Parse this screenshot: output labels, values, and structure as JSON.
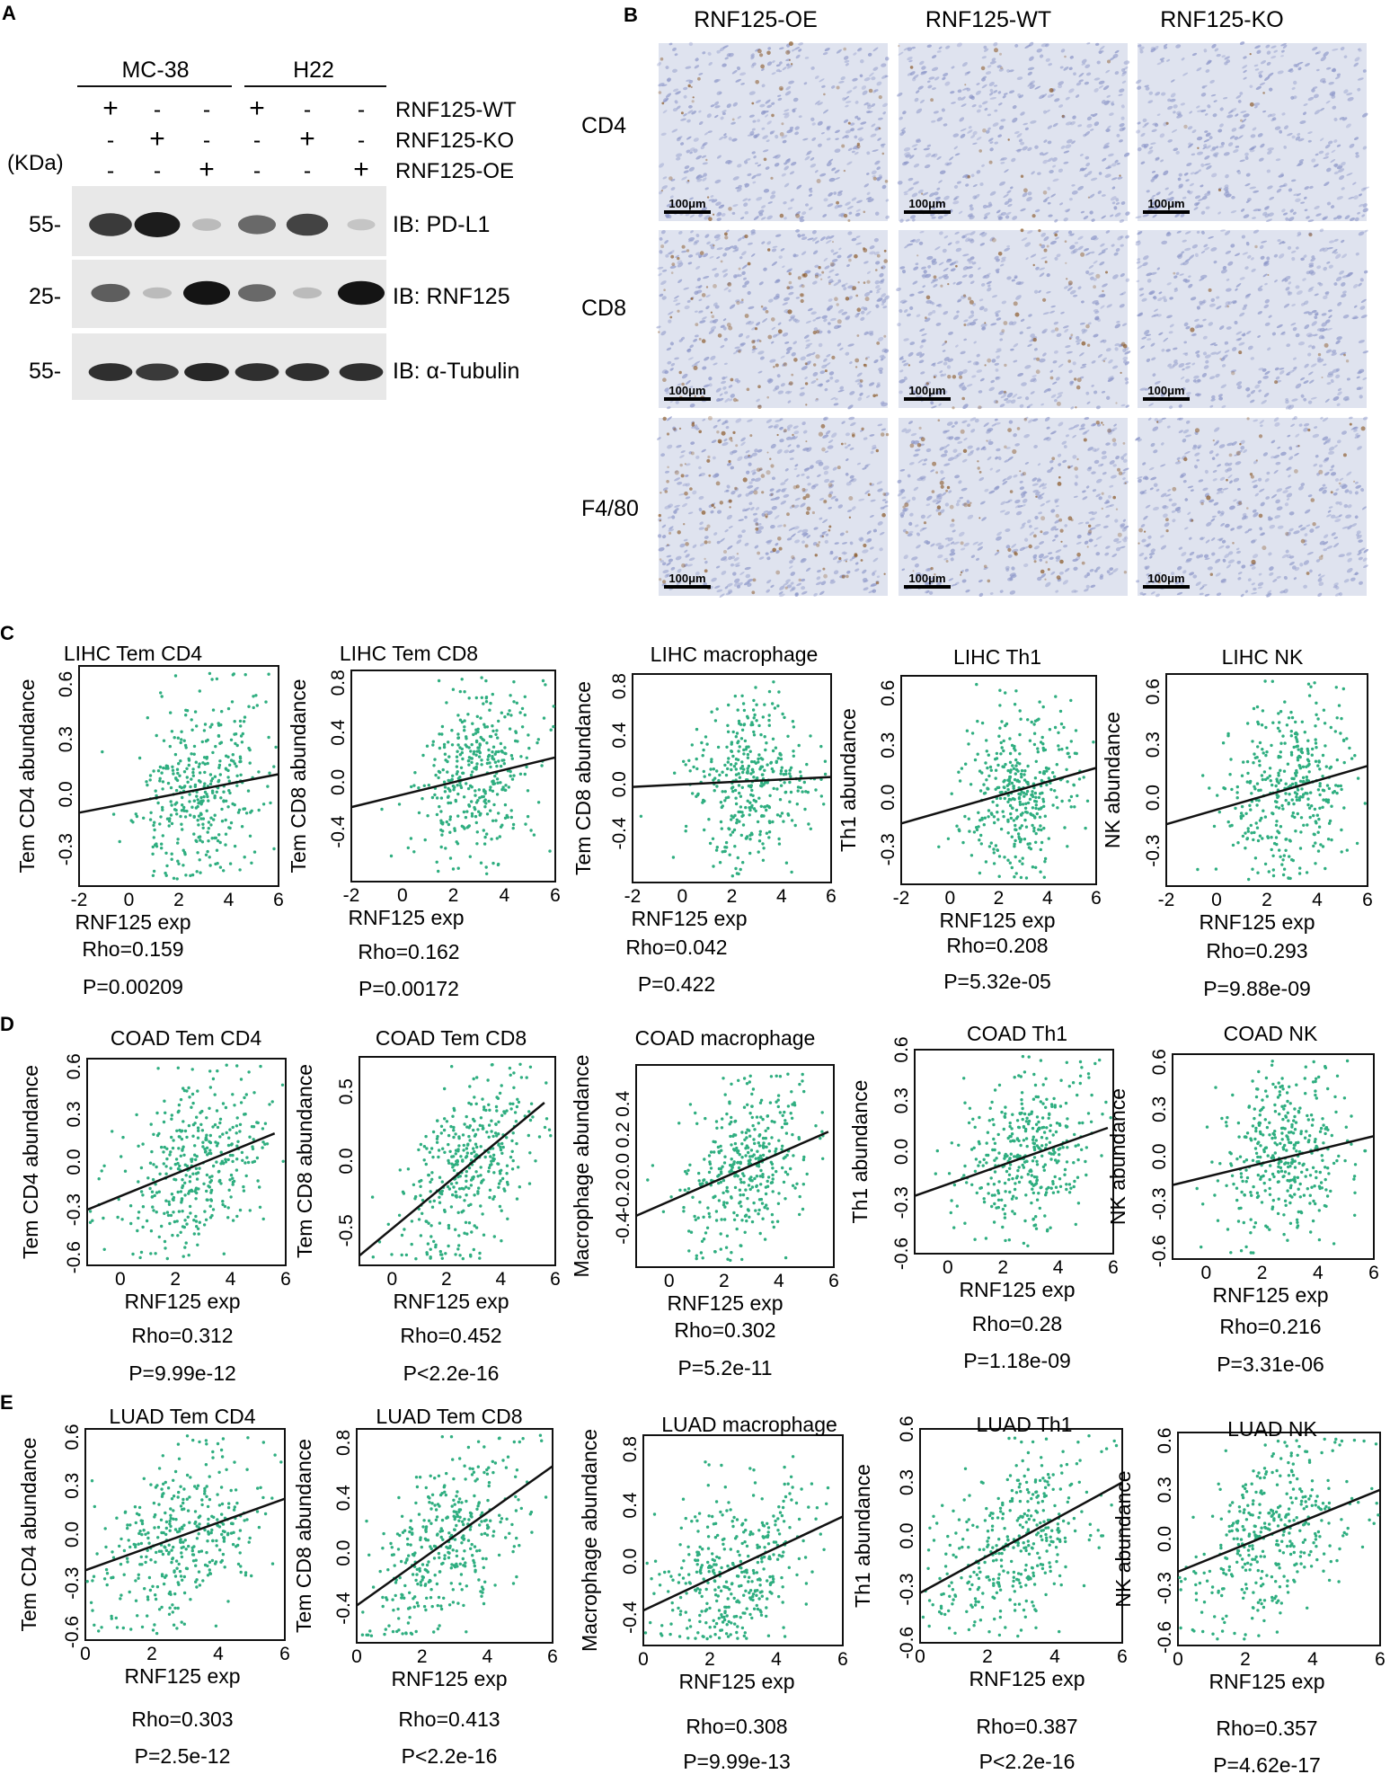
{
  "panel_letters": [
    "A",
    "B",
    "C",
    "D",
    "E"
  ],
  "panelA": {
    "groups": [
      "MC-38",
      "H22"
    ],
    "conditions": [
      "RNF125-WT",
      "RNF125-KO",
      "RNF125-OE"
    ],
    "kda_label": "(KDa)",
    "signs": [
      [
        "+",
        "-",
        "-",
        "+",
        "-",
        "-"
      ],
      [
        "-",
        "+",
        "-",
        "-",
        "+",
        "-"
      ],
      [
        "-",
        "-",
        "+",
        "-",
        "-",
        "+"
      ]
    ],
    "blots": [
      {
        "label": "IB: PD-L1",
        "mw": "55-",
        "intensity": [
          0.8,
          0.95,
          0.1,
          0.55,
          0.75,
          0.05
        ]
      },
      {
        "label": "IB: RNF125",
        "mw": "25-",
        "intensity": [
          0.6,
          0.1,
          1.0,
          0.55,
          0.1,
          1.0
        ]
      },
      {
        "label": "IB: α-Tubulin",
        "mw": "55-",
        "intensity": [
          0.85,
          0.8,
          0.9,
          0.85,
          0.85,
          0.85
        ]
      }
    ]
  },
  "panelB": {
    "columns": [
      "RNF125-OE",
      "RNF125-WT",
      "RNF125-KO"
    ],
    "rows": [
      "CD4",
      "CD8",
      "F4/80"
    ],
    "scale_bar": "100μm",
    "stain_density": [
      [
        0.35,
        0.15,
        0.05
      ],
      [
        0.8,
        0.45,
        0.1
      ],
      [
        0.9,
        0.6,
        0.3
      ]
    ]
  },
  "chart_data": [
    {
      "type": "scatter",
      "panel": "C",
      "title": "LIHC Tem CD4",
      "xlabel": "RNF125 exp",
      "ylabel": "Tem CD4 abundance",
      "rho": "Rho=0.159",
      "p": "P=0.00209",
      "xlim": [
        -2,
        6
      ],
      "xticks": [
        "-2",
        "0",
        "2",
        "4",
        "6"
      ],
      "ylim": [
        -0.5,
        0.7
      ],
      "yticks": [
        "-0.3",
        "0.0",
        "0.3",
        "0.6"
      ],
      "fit": [
        [
          -2,
          -0.1
        ],
        [
          6,
          0.11
        ]
      ]
    },
    {
      "type": "scatter",
      "panel": "C",
      "title": "LIHC Tem CD8",
      "xlabel": "RNF125 exp",
      "ylabel": "Tem CD8 abundance",
      "rho": "Rho=0.162",
      "p": "P=0.00172",
      "xlim": [
        -2,
        6
      ],
      "xticks": [
        "-2",
        "0",
        "2",
        "4",
        "6"
      ],
      "ylim": [
        -0.8,
        0.9
      ],
      "yticks": [
        "-0.4",
        "0.0",
        "0.4",
        "0.8"
      ],
      "fit": [
        [
          -2,
          -0.2
        ],
        [
          6,
          0.2
        ]
      ]
    },
    {
      "type": "scatter",
      "panel": "C",
      "title": "LIHC macrophage",
      "xlabel": "RNF125 exp",
      "ylabel": "Tem CD8 abundance",
      "rho": "Rho=0.042",
      "p": "P=0.422",
      "xlim": [
        -2,
        6
      ],
      "xticks": [
        "-2",
        "0",
        "2",
        "4",
        "6"
      ],
      "ylim": [
        -0.8,
        0.9
      ],
      "yticks": [
        "-0.4",
        "0.0",
        "0.4",
        "0.8"
      ],
      "fit": [
        [
          -2,
          -0.02
        ],
        [
          6,
          0.06
        ]
      ]
    },
    {
      "type": "scatter",
      "panel": "C",
      "title": "LIHC Th1",
      "xlabel": "RNF125 exp",
      "ylabel": "Th1 abundance",
      "rho": "Rho=0.208",
      "p": "P=5.32e-05",
      "xlim": [
        -2,
        6
      ],
      "xticks": [
        "-2",
        "0",
        "2",
        "4",
        "6"
      ],
      "ylim": [
        -0.5,
        0.7
      ],
      "yticks": [
        "-0.3",
        "0.0",
        "0.3",
        "0.6"
      ],
      "fit": [
        [
          -2,
          -0.15
        ],
        [
          6,
          0.17
        ]
      ]
    },
    {
      "type": "scatter",
      "panel": "C",
      "title": "LIHC NK",
      "xlabel": "RNF125 exp",
      "ylabel": "NK abundance",
      "rho": "Rho=0.293",
      "p": "P=9.88e-09",
      "xlim": [
        -2,
        6
      ],
      "xticks": [
        "-2",
        "0",
        "2",
        "4",
        "6"
      ],
      "ylim": [
        -0.5,
        0.7
      ],
      "yticks": [
        "-0.3",
        "0.0",
        "0.3",
        "0.6"
      ],
      "fit": [
        [
          -2,
          -0.15
        ],
        [
          6,
          0.18
        ]
      ]
    },
    {
      "type": "scatter",
      "panel": "D",
      "title": "COAD Tem CD4",
      "xlabel": "RNF125 exp",
      "ylabel": "Tem CD4 abundance",
      "rho": "Rho=0.312",
      "p": "P=9.99e-12",
      "xlim": [
        -1.2,
        6
      ],
      "xticks": [
        "0",
        "2",
        "4",
        "6"
      ],
      "ylim": [
        -0.65,
        0.65
      ],
      "yticks": [
        "-0.6",
        "-0.3",
        "0.0",
        "0.3",
        "0.6"
      ],
      "fit": [
        [
          -1.2,
          -0.3
        ],
        [
          5.6,
          0.18
        ]
      ]
    },
    {
      "type": "scatter",
      "panel": "D",
      "title": "COAD Tem CD8",
      "xlabel": "RNF125 exp",
      "ylabel": "Tem CD8 abundance",
      "rho": "Rho=0.452",
      "p": "P<2.2e-16",
      "xlim": [
        -1.2,
        6
      ],
      "xticks": [
        "0",
        "2",
        "4",
        "6"
      ],
      "ylim": [
        -0.75,
        0.75
      ],
      "yticks": [
        "-0.5",
        "0.0",
        "0.5"
      ],
      "fit": [
        [
          -1.2,
          -0.68
        ],
        [
          5.6,
          0.42
        ]
      ]
    },
    {
      "type": "scatter",
      "panel": "D",
      "title": "COAD macrophage",
      "xlabel": "RNF125 exp",
      "ylabel": "Macrophage abundance",
      "rho": "Rho=0.302",
      "p": "P=5.2e-11",
      "xlim": [
        -1.2,
        6
      ],
      "xticks": [
        "0",
        "2",
        "4",
        "6"
      ],
      "ylim": [
        -0.65,
        0.65
      ],
      "yticks": [
        "-0.4",
        "-0.2",
        "0.0",
        "0.2",
        "0.4"
      ],
      "fit": [
        [
          -1.2,
          -0.32
        ],
        [
          5.8,
          0.22
        ]
      ]
    },
    {
      "type": "scatter",
      "panel": "D",
      "title": "COAD Th1",
      "xlabel": "RNF125 exp",
      "ylabel": "Th1 abundance",
      "rho": "Rho=0.28",
      "p": "P=1.18e-09",
      "xlim": [
        -1.2,
        6
      ],
      "xticks": [
        "0",
        "2",
        "4",
        "6"
      ],
      "ylim": [
        -0.6,
        0.6
      ],
      "yticks": [
        "-0.6",
        "-0.3",
        "0.0",
        "0.3",
        "0.6"
      ],
      "fit": [
        [
          -1.2,
          -0.26
        ],
        [
          5.8,
          0.14
        ]
      ]
    },
    {
      "type": "scatter",
      "panel": "D",
      "title": "COAD NK",
      "xlabel": "RNF125 exp",
      "ylabel": "NK abundance",
      "rho": "Rho=0.216",
      "p": "P=3.31e-06",
      "xlim": [
        -1.2,
        6
      ],
      "xticks": [
        "0",
        "2",
        "4",
        "6"
      ],
      "ylim": [
        -0.65,
        0.65
      ],
      "yticks": [
        "-0.6",
        "-0.3",
        "0.0",
        "0.3",
        "0.6"
      ],
      "fit": [
        [
          -1.2,
          -0.18
        ],
        [
          6,
          0.13
        ]
      ]
    },
    {
      "type": "scatter",
      "panel": "E",
      "title": "LUAD Tem CD4",
      "xlabel": "RNF125 exp",
      "ylabel": "Tem CD4 abundance",
      "rho": "Rho=0.303",
      "p": "P=2.5e-12",
      "xlim": [
        0,
        6
      ],
      "xticks": [
        "0",
        "2",
        "4",
        "6"
      ],
      "ylim": [
        -0.65,
        0.65
      ],
      "yticks": [
        "-0.6",
        "-0.3",
        "0.0",
        "0.3",
        "0.6"
      ],
      "fit": [
        [
          0,
          -0.22
        ],
        [
          6,
          0.22
        ]
      ]
    },
    {
      "type": "scatter",
      "panel": "E",
      "title": "LUAD Tem CD8",
      "xlabel": "RNF125 exp",
      "ylabel": "Tem CD8 abundance",
      "rho": "Rho=0.413",
      "p": "P<2.2e-16",
      "xlim": [
        0,
        6
      ],
      "xticks": [
        "0",
        "2",
        "4",
        "6"
      ],
      "ylim": [
        -0.65,
        0.9
      ],
      "yticks": [
        "-0.4",
        "0.0",
        "0.4",
        "0.8"
      ],
      "fit": [
        [
          0,
          -0.38
        ],
        [
          6,
          0.63
        ]
      ]
    },
    {
      "type": "scatter",
      "panel": "E",
      "title": "LUAD macrophage",
      "xlabel": "RNF125 exp",
      "ylabel": "Macrophage abundance",
      "rho": "Rho=0.308",
      "p": "P=9.99e-13",
      "xlim": [
        0,
        6
      ],
      "xticks": [
        "0",
        "2",
        "4",
        "6"
      ],
      "ylim": [
        -0.6,
        0.9
      ],
      "yticks": [
        "-0.4",
        "0.0",
        "0.4",
        "0.8"
      ],
      "fit": [
        [
          0,
          -0.35
        ],
        [
          6,
          0.32
        ]
      ]
    },
    {
      "type": "scatter",
      "panel": "E",
      "title": "LUAD Th1",
      "xlabel": "RNF125 exp",
      "ylabel": "Th1 abundance",
      "rho": "Rho=0.387",
      "p": "P<2.2e-16",
      "xlim": [
        0,
        6
      ],
      "xticks": [
        "0",
        "2",
        "4",
        "6"
      ],
      "ylim": [
        -0.6,
        0.6
      ],
      "yticks": [
        "-0.6",
        "-0.3",
        "0.0",
        "0.3",
        "0.6"
      ],
      "fit": [
        [
          0,
          -0.32
        ],
        [
          6,
          0.3
        ]
      ]
    },
    {
      "type": "scatter",
      "panel": "E",
      "title": "LUAD NK",
      "xlabel": "RNF125 exp",
      "ylabel": "NK abundance",
      "rho": "Rho=0.357",
      "p": "P=4.62e-17",
      "xlim": [
        0,
        6
      ],
      "xticks": [
        "0",
        "2",
        "4",
        "6"
      ],
      "ylim": [
        -0.65,
        0.65
      ],
      "yticks": [
        "-0.6",
        "-0.3",
        "0.0",
        "0.3",
        "0.6"
      ],
      "fit": [
        [
          0,
          -0.2
        ],
        [
          6,
          0.3
        ]
      ]
    }
  ],
  "colors": {
    "points": "#2fae80",
    "ihc_bg": "#dfe3ef",
    "nuclei": "#8c96c8",
    "stain": "#8b5a2b",
    "band": "#141414",
    "blot_bg": "#e8e8e8"
  }
}
